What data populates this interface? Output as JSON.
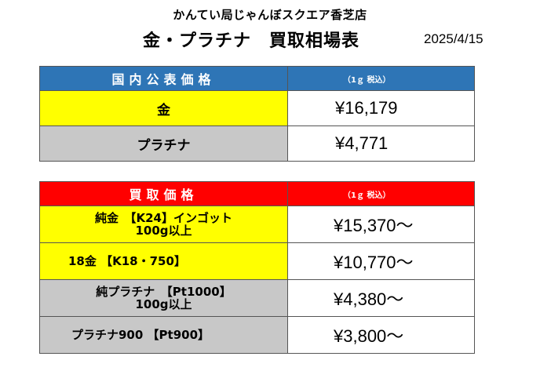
{
  "header": {
    "store_name": "かんてい局じゃんぼスクエア香芝店",
    "title": "金・プラチナ　買取相場表",
    "date": "2025/4/15"
  },
  "public_prices": {
    "heading": "国内公表価格",
    "note": "（1ｇ 税込）",
    "rows": [
      {
        "name": "金",
        "price": "¥16,179"
      },
      {
        "name": "プラチナ",
        "price": "¥4,771"
      }
    ]
  },
  "buy_prices": {
    "heading": "買取価格",
    "note": "（1ｇ 税込）",
    "rows": [
      {
        "name_line1": "純金　【K24】インゴット",
        "name_line2": "100g以上",
        "price": "¥15,370～"
      },
      {
        "name_line1": "18金 【K18・750】",
        "price": "¥10,770～"
      },
      {
        "name_line1": "純プラチナ　【Pt1000】",
        "name_line2": "100g以上",
        "price": "¥4,380～"
      },
      {
        "name_line1": "プラチナ900 【Pt900】",
        "price": "¥3,800～"
      }
    ]
  },
  "colors": {
    "public_header": "#2e75b6",
    "buy_header": "#ff0000",
    "gold_cell": "#ffff00",
    "platinum_cell": "#c8c8c8"
  }
}
